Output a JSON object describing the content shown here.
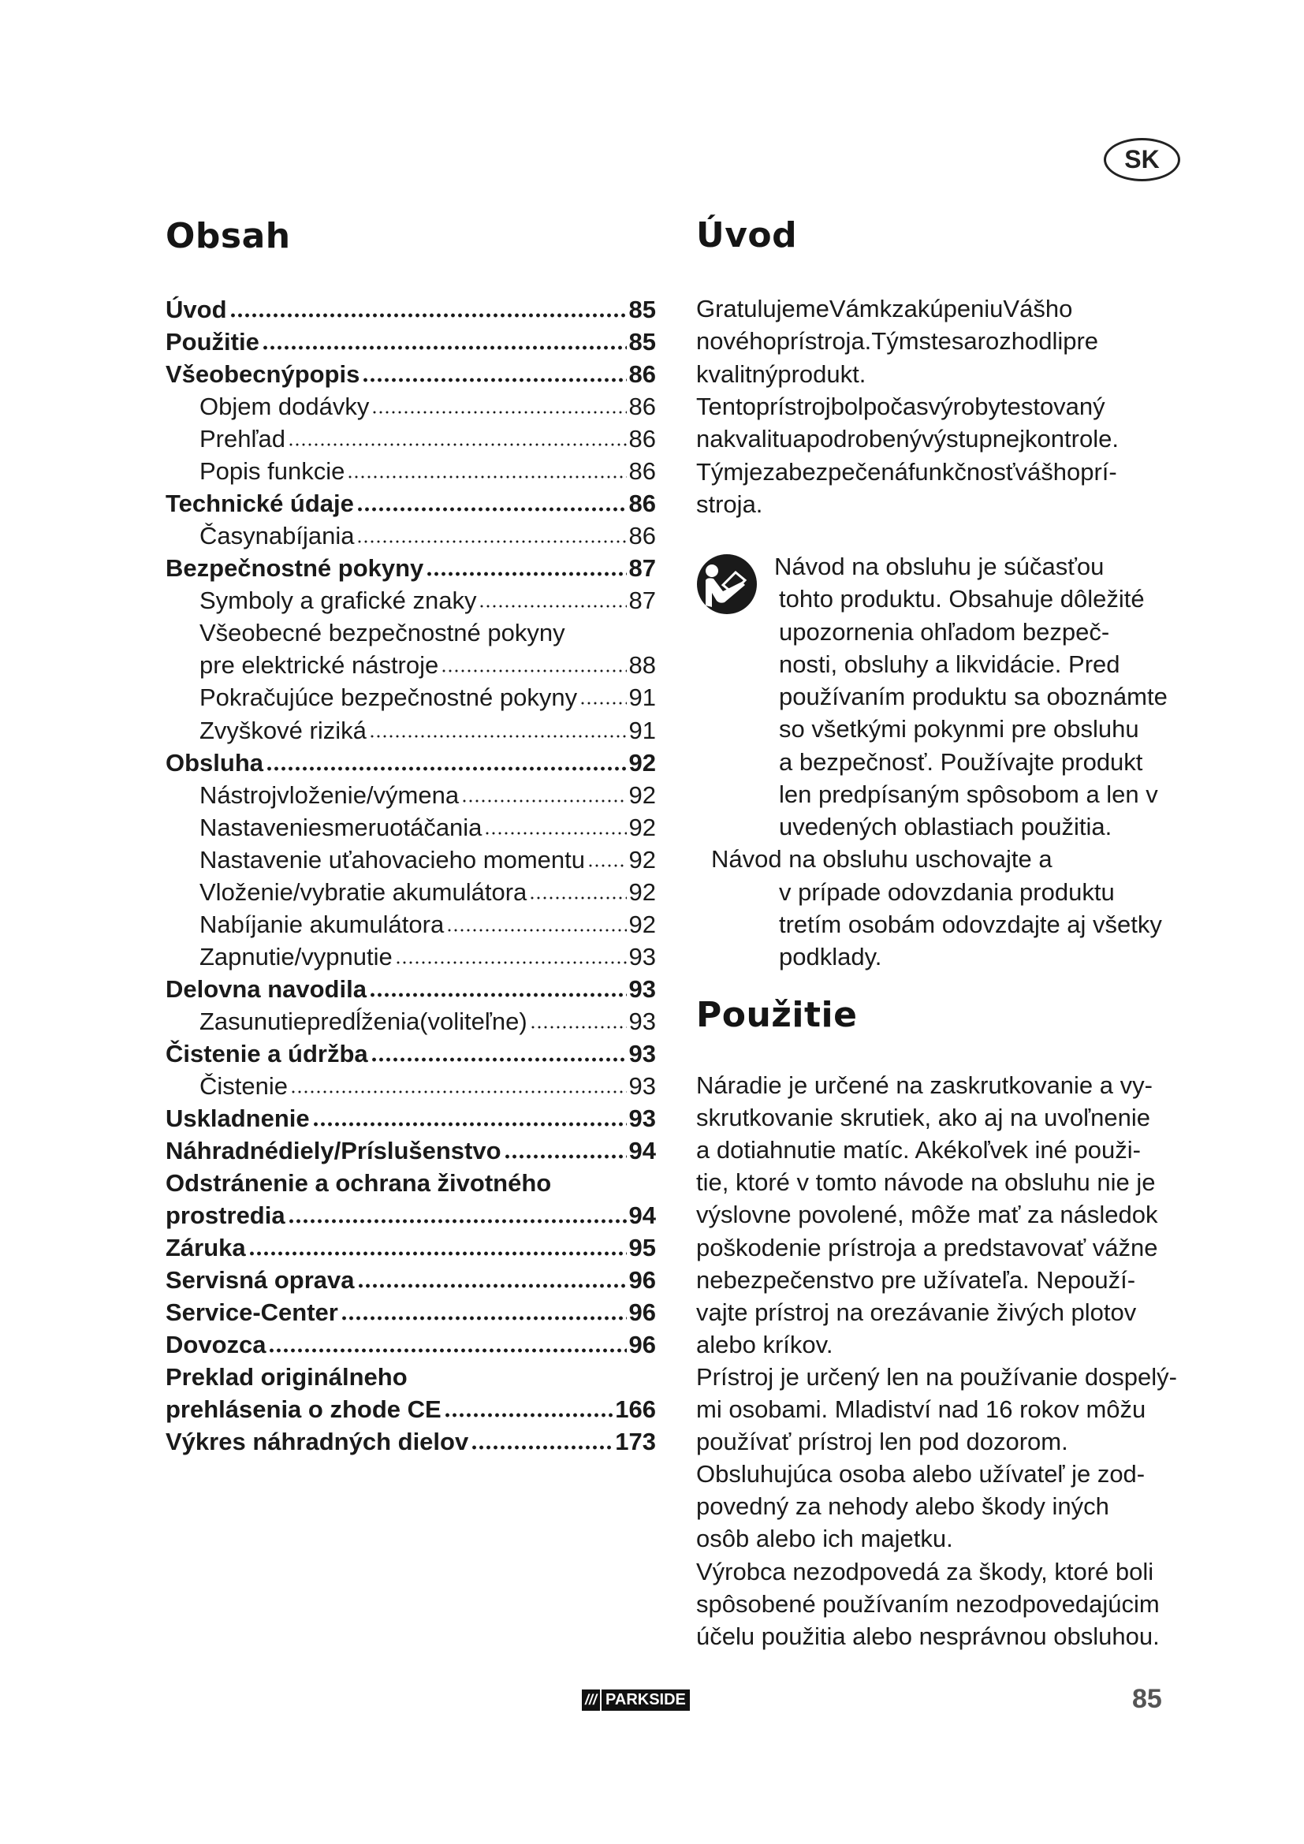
{
  "language_badge": "SK",
  "toc": {
    "title": "Obsah",
    "entries": [
      {
        "label": "Úvod",
        "page": "85",
        "bold": true,
        "indent": false
      },
      {
        "label": "Použitie",
        "page": "85",
        "bold": true,
        "indent": false
      },
      {
        "label": "Všeobecnýpopis",
        "page": "86",
        "bold": true,
        "indent": false
      },
      {
        "label": "Objem dodávky",
        "page": "86",
        "bold": false,
        "indent": true
      },
      {
        "label": "Prehľad",
        "page": "86",
        "bold": false,
        "indent": true
      },
      {
        "label": "Popis funkcie",
        "page": "86",
        "bold": false,
        "indent": true
      },
      {
        "label": "Technické údaje",
        "page": "86",
        "bold": true,
        "indent": false
      },
      {
        "label": "Časynabíjania",
        "page": "86",
        "bold": false,
        "indent": true
      },
      {
        "label": "Bezpečnostné pokyny",
        "page": "87",
        "bold": true,
        "indent": false
      },
      {
        "label": "Symboly a grafické znaky",
        "page": "87",
        "bold": false,
        "indent": true
      },
      {
        "label": "Všeobecné bezpečnostné pokyny",
        "page": "",
        "bold": false,
        "indent": true
      },
      {
        "label": "pre elektrické nástroje",
        "page": "88",
        "bold": false,
        "indent": true
      },
      {
        "label": "Pokračujúce bezpečnostné pokyny",
        "page": "91",
        "bold": false,
        "indent": true
      },
      {
        "label": "Zvyškové riziká",
        "page": "91",
        "bold": false,
        "indent": true
      },
      {
        "label": "Obsluha",
        "page": "92",
        "bold": true,
        "indent": false
      },
      {
        "label": "Nástrojvloženie/výmena",
        "page": "92",
        "bold": false,
        "indent": true
      },
      {
        "label": "Nastaveniesmeruotáčania",
        "page": "92",
        "bold": false,
        "indent": true
      },
      {
        "label": "Nastavenie uťahovacieho momentu",
        "page": "92",
        "bold": false,
        "indent": true
      },
      {
        "label": "Vloženie/vybratie akumulátora",
        "page": "92",
        "bold": false,
        "indent": true
      },
      {
        "label": "Nabíjanie akumulátora",
        "page": "92",
        "bold": false,
        "indent": true
      },
      {
        "label": "Zapnutie/vypnutie",
        "page": "93",
        "bold": false,
        "indent": true
      },
      {
        "label": "Delovna navodila",
        "page": "93",
        "bold": true,
        "indent": false
      },
      {
        "label": "Zasunutiepredĺženia(voliteľne)",
        "page": "93",
        "bold": false,
        "indent": true
      },
      {
        "label": "Čistenie a údržba",
        "page": "93",
        "bold": true,
        "indent": false
      },
      {
        "label": "Čistenie",
        "page": "93",
        "bold": false,
        "indent": true
      },
      {
        "label": "Uskladnenie",
        "page": "93",
        "bold": true,
        "indent": false
      },
      {
        "label": "Náhradnédiely/Príslušenstvo",
        "page": "94",
        "bold": true,
        "indent": false
      },
      {
        "label": "Odstránenie a ochrana životného",
        "page": "",
        "bold": true,
        "indent": false
      },
      {
        "label": "prostredia",
        "page": "94",
        "bold": true,
        "indent": false
      },
      {
        "label": "Záruka",
        "page": "95",
        "bold": true,
        "indent": false
      },
      {
        "label": "Servisná oprava",
        "page": "96",
        "bold": true,
        "indent": false
      },
      {
        "label": "Service-Center",
        "page": "96",
        "bold": true,
        "indent": false
      },
      {
        "label": "Dovozca",
        "page": "96",
        "bold": true,
        "indent": false
      },
      {
        "label": "Preklad originálneho",
        "page": "",
        "bold": true,
        "indent": false
      },
      {
        "label": "prehlásenia o zhode CE",
        "page": "166",
        "bold": true,
        "indent": false
      },
      {
        "label": "Výkres náhradných dielov",
        "page": "173",
        "bold": true,
        "indent": false
      }
    ]
  },
  "intro": {
    "title": "Úvod",
    "lines": [
      "GratulujemeVámkzakúpeniuVášho",
      "novéhoprístroja.Týmstesarozhodlipre",
      "kvalitnýprodukt.",
      "Tentoprístrojbolpočasvýrobytestovaný",
      "nakvalituapodrobenývýstupnejkontrole.",
      "Týmjezabezpečenáfunkčnosťvášhoprí-",
      "stroja."
    ],
    "notice_icon": "read-manual-icon",
    "notice_lines": [
      "Návod na obsluhu je súčasťou",
      "tohto produktu. Obsahuje dôležité",
      "upozornenia ohľadom  bezpeč-",
      "nosti, obsluhy a likvidácie. Pred",
      "používaním produktu sa oboznámte",
      "so všetkými pokynmi pre obsluhu",
      "a bezpečnosť. Používajte produkt",
      "len predpísaným spôsobom a len v",
      "uvedených oblastiach použitia.",
      "Návod na obsluhu uschovajte a",
      "v prípade odovzdania produktu",
      "tretím osobám odovzdajte aj všetky",
      "podklady."
    ]
  },
  "usage": {
    "title": "Použitie",
    "lines": [
      "Náradie je určené na zaskrutkovanie a vy-",
      "skrutkovanie skrutiek, ako aj na uvoľnenie",
      "a dotiahnutie matíc. Akékoľvek iné použi-",
      "tie, ktoré v tomto návode na obsluhu nie je",
      "výslovne povolené, môže mať za následok",
      "poškodenie prístroja a predstavovať vážne",
      "nebezpečenstvo pre užívateľa. Nepouží-",
      "vajte prístroj na orezávanie živých plotov",
      "alebo kríkov.",
      "Prístroj je určený len na používanie dospelý-",
      "mi osobami. Mladiství nad 16 rokov môžu",
      "používať prístroj len pod dozorom.",
      "Obsluhujúca osoba alebo užívateľ je zod-",
      "povedný za nehody alebo škody iných",
      "osôb alebo ich majetku.",
      "Výrobca nezodpovedá za škody, ktoré boli",
      "spôsobené používaním nezodpovedajúcim",
      "účelu použitia alebo nesprávnou obsluhou."
    ]
  },
  "footer": {
    "logo_text": "PARKSIDE",
    "logo_stripes": "///",
    "page_number": "85"
  }
}
